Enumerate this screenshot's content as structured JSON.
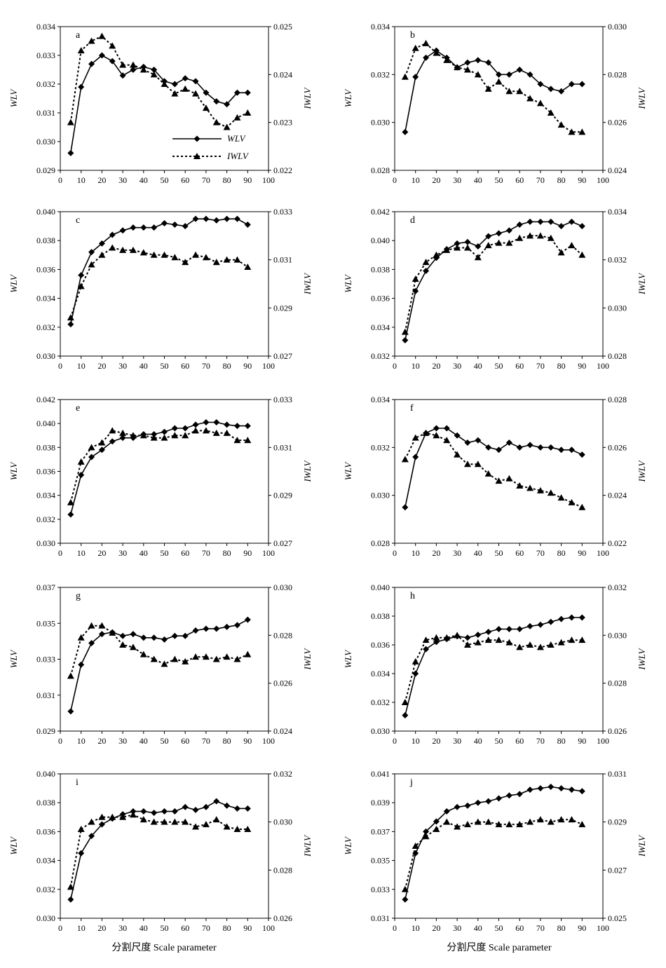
{
  "figure": {
    "xlabels": [
      "分割尺度 Scale parameter",
      "分割尺度 Scale parameter"
    ]
  },
  "legend": {
    "wlv": "WLV",
    "iwlv": "IWLV"
  },
  "chart_data": [
    {
      "type": "line",
      "panel": "a",
      "ylabel_left": "WLV",
      "ylabel_right": "IWLV",
      "xlim": [
        0,
        100
      ],
      "xticks": [
        0,
        10,
        20,
        30,
        40,
        50,
        60,
        70,
        80,
        90,
        100
      ],
      "ylim_left": [
        0.029,
        0.034
      ],
      "yticks_left": [
        "0.029",
        "0.030",
        "0.031",
        "0.032",
        "0.033",
        "0.034"
      ],
      "ylim_right": [
        0.022,
        0.025
      ],
      "yticks_right": [
        "0.022",
        "0.023",
        "0.024",
        "0.025"
      ],
      "x": [
        5,
        10,
        15,
        20,
        25,
        30,
        35,
        40,
        45,
        50,
        55,
        60,
        65,
        70,
        75,
        80,
        85,
        90
      ],
      "series": [
        {
          "name": "WLV",
          "axis": "left",
          "marker": "diamond",
          "line": "solid",
          "values": [
            0.0296,
            0.0319,
            0.0327,
            0.033,
            0.0328,
            0.0323,
            0.0325,
            0.0326,
            0.0325,
            0.0321,
            0.032,
            0.0322,
            0.0321,
            0.0317,
            0.0314,
            0.0313,
            0.0317,
            0.0317
          ]
        },
        {
          "name": "IWLV",
          "axis": "right",
          "marker": "triangle",
          "line": "dotted",
          "values": [
            0.023,
            0.0245,
            0.0247,
            0.0248,
            0.0246,
            0.0242,
            0.0242,
            0.0241,
            0.024,
            0.0238,
            0.0236,
            0.0237,
            0.0236,
            0.0233,
            0.023,
            0.0229,
            0.0231,
            0.0232
          ]
        }
      ],
      "legend": true
    },
    {
      "type": "line",
      "panel": "b",
      "ylabel_left": "WLV",
      "ylabel_right": "IWLV",
      "xlim": [
        0,
        100
      ],
      "xticks": [
        0,
        10,
        20,
        30,
        40,
        50,
        60,
        70,
        80,
        90,
        100
      ],
      "ylim_left": [
        0.028,
        0.034
      ],
      "yticks_left": [
        "0.028",
        "0.030",
        "0.032",
        "0.034"
      ],
      "ylim_right": [
        0.024,
        0.03
      ],
      "yticks_right": [
        "0.024",
        "0.026",
        "0.028",
        "0.030"
      ],
      "x": [
        5,
        10,
        15,
        20,
        25,
        30,
        35,
        40,
        45,
        50,
        55,
        60,
        65,
        70,
        75,
        80,
        85,
        90
      ],
      "series": [
        {
          "name": "WLV",
          "axis": "left",
          "marker": "diamond",
          "line": "solid",
          "values": [
            0.0296,
            0.0319,
            0.0327,
            0.033,
            0.0327,
            0.0323,
            0.0325,
            0.0326,
            0.0325,
            0.032,
            0.032,
            0.0322,
            0.032,
            0.0316,
            0.0314,
            0.0313,
            0.0316,
            0.0316
          ]
        },
        {
          "name": "IWLV",
          "axis": "right",
          "marker": "triangle",
          "line": "dotted",
          "values": [
            0.0279,
            0.0291,
            0.0293,
            0.0289,
            0.0286,
            0.0283,
            0.0282,
            0.028,
            0.0274,
            0.0277,
            0.0273,
            0.0273,
            0.027,
            0.0268,
            0.0264,
            0.0259,
            0.0256,
            0.0256
          ]
        }
      ]
    },
    {
      "type": "line",
      "panel": "c",
      "ylabel_left": "WLV",
      "ylabel_right": "IWLV",
      "xlim": [
        0,
        100
      ],
      "xticks": [
        0,
        10,
        20,
        30,
        40,
        50,
        60,
        70,
        80,
        90,
        100
      ],
      "ylim_left": [
        0.03,
        0.04
      ],
      "yticks_left": [
        "0.030",
        "0.032",
        "0.034",
        "0.036",
        "0.038",
        "0.040"
      ],
      "ylim_right": [
        0.027,
        0.033
      ],
      "yticks_right": [
        "0.027",
        "0.029",
        "0.031",
        "0.033"
      ],
      "x": [
        5,
        10,
        15,
        20,
        25,
        30,
        35,
        40,
        45,
        50,
        55,
        60,
        65,
        70,
        75,
        80,
        85,
        90
      ],
      "series": [
        {
          "name": "WLV",
          "axis": "left",
          "marker": "diamond",
          "line": "solid",
          "values": [
            0.0322,
            0.0356,
            0.0372,
            0.0378,
            0.0384,
            0.0387,
            0.0389,
            0.0389,
            0.0389,
            0.0392,
            0.0391,
            0.039,
            0.0395,
            0.0395,
            0.0394,
            0.0395,
            0.0395,
            0.0391
          ]
        },
        {
          "name": "IWLV",
          "axis": "right",
          "marker": "triangle",
          "line": "dotted",
          "values": [
            0.0286,
            0.0299,
            0.0308,
            0.0312,
            0.0315,
            0.0314,
            0.0314,
            0.0313,
            0.0312,
            0.0312,
            0.0311,
            0.0309,
            0.0312,
            0.0311,
            0.0309,
            0.031,
            0.031,
            0.0307
          ]
        }
      ]
    },
    {
      "type": "line",
      "panel": "d",
      "ylabel_left": "WLV",
      "ylabel_right": "IWLV",
      "xlim": [
        0,
        100
      ],
      "xticks": [
        0,
        10,
        20,
        30,
        40,
        50,
        60,
        70,
        80,
        90,
        100
      ],
      "ylim_left": [
        0.032,
        0.042
      ],
      "yticks_left": [
        "0.032",
        "0.034",
        "0.036",
        "0.038",
        "0.040",
        "0.042"
      ],
      "ylim_right": [
        0.028,
        0.034
      ],
      "yticks_right": [
        "0.028",
        "0.030",
        "0.032",
        "0.034"
      ],
      "x": [
        5,
        10,
        15,
        20,
        25,
        30,
        35,
        40,
        45,
        50,
        55,
        60,
        65,
        70,
        75,
        80,
        85,
        90
      ],
      "series": [
        {
          "name": "WLV",
          "axis": "left",
          "marker": "diamond",
          "line": "solid",
          "values": [
            0.0331,
            0.0365,
            0.0379,
            0.0388,
            0.0394,
            0.0398,
            0.0399,
            0.0396,
            0.0403,
            0.0405,
            0.0407,
            0.0411,
            0.0413,
            0.0413,
            0.0413,
            0.041,
            0.0413,
            0.041
          ]
        },
        {
          "name": "IWLV",
          "axis": "right",
          "marker": "triangle",
          "line": "dotted",
          "values": [
            0.029,
            0.0312,
            0.0319,
            0.0322,
            0.0324,
            0.0325,
            0.0325,
            0.0321,
            0.0326,
            0.0327,
            0.0327,
            0.0329,
            0.033,
            0.033,
            0.0329,
            0.0323,
            0.0326,
            0.0322
          ]
        }
      ]
    },
    {
      "type": "line",
      "panel": "e",
      "ylabel_left": "WLV",
      "ylabel_right": "IWLV",
      "xlim": [
        0,
        100
      ],
      "xticks": [
        0,
        10,
        20,
        30,
        40,
        50,
        60,
        70,
        80,
        90,
        100
      ],
      "ylim_left": [
        0.03,
        0.042
      ],
      "yticks_left": [
        "0.030",
        "0.032",
        "0.034",
        "0.036",
        "0.038",
        "0.040",
        "0.042"
      ],
      "ylim_right": [
        0.027,
        0.033
      ],
      "yticks_right": [
        "0.027",
        "0.029",
        "0.031",
        "0.033"
      ],
      "x": [
        5,
        10,
        15,
        20,
        25,
        30,
        35,
        40,
        45,
        50,
        55,
        60,
        65,
        70,
        75,
        80,
        85,
        90
      ],
      "series": [
        {
          "name": "WLV",
          "axis": "left",
          "marker": "diamond",
          "line": "solid",
          "values": [
            0.0324,
            0.0357,
            0.0372,
            0.0378,
            0.0385,
            0.0388,
            0.0388,
            0.0391,
            0.0391,
            0.0393,
            0.0396,
            0.0396,
            0.0399,
            0.0401,
            0.0401,
            0.0399,
            0.0398,
            0.0398
          ]
        },
        {
          "name": "IWLV",
          "axis": "right",
          "marker": "triangle",
          "line": "dotted",
          "values": [
            0.0287,
            0.0304,
            0.031,
            0.0312,
            0.0317,
            0.0316,
            0.0315,
            0.0315,
            0.0314,
            0.0314,
            0.0315,
            0.0315,
            0.0317,
            0.0317,
            0.0316,
            0.0316,
            0.0313,
            0.0313
          ]
        }
      ]
    },
    {
      "type": "line",
      "panel": "f",
      "ylabel_left": "WLV",
      "ylabel_right": "IWLV",
      "xlim": [
        0,
        100
      ],
      "xticks": [
        0,
        10,
        20,
        30,
        40,
        50,
        60,
        70,
        80,
        90,
        100
      ],
      "ylim_left": [
        0.028,
        0.034
      ],
      "yticks_left": [
        "0.028",
        "0.030",
        "0.032",
        "0.034"
      ],
      "ylim_right": [
        0.022,
        0.028
      ],
      "yticks_right": [
        "0.022",
        "0.024",
        "0.026",
        "0.028"
      ],
      "x": [
        5,
        10,
        15,
        20,
        25,
        30,
        35,
        40,
        45,
        50,
        55,
        60,
        65,
        70,
        75,
        80,
        85,
        90
      ],
      "series": [
        {
          "name": "WLV",
          "axis": "left",
          "marker": "diamond",
          "line": "solid",
          "values": [
            0.0295,
            0.0316,
            0.0326,
            0.0328,
            0.0328,
            0.0325,
            0.0322,
            0.0323,
            0.032,
            0.0319,
            0.0322,
            0.032,
            0.0321,
            0.032,
            0.032,
            0.0319,
            0.0319,
            0.0317
          ]
        },
        {
          "name": "IWLV",
          "axis": "right",
          "marker": "triangle",
          "line": "dotted",
          "values": [
            0.0255,
            0.0264,
            0.0266,
            0.0265,
            0.0263,
            0.0257,
            0.0253,
            0.0253,
            0.0249,
            0.0246,
            0.0247,
            0.0244,
            0.0243,
            0.0242,
            0.0241,
            0.0239,
            0.0237,
            0.0235
          ]
        }
      ]
    },
    {
      "type": "line",
      "panel": "g",
      "ylabel_left": "WLV",
      "ylabel_right": "IWLV",
      "xlim": [
        0,
        100
      ],
      "xticks": [
        0,
        10,
        20,
        30,
        40,
        50,
        60,
        70,
        80,
        90,
        100
      ],
      "ylim_left": [
        0.029,
        0.037
      ],
      "yticks_left": [
        "0.029",
        "0.031",
        "0.033",
        "0.035",
        "0.037"
      ],
      "ylim_right": [
        0.024,
        0.03
      ],
      "yticks_right": [
        "0.024",
        "0.026",
        "0.028",
        "0.030"
      ],
      "x": [
        5,
        10,
        15,
        20,
        25,
        30,
        35,
        40,
        45,
        50,
        55,
        60,
        65,
        70,
        75,
        80,
        85,
        90
      ],
      "series": [
        {
          "name": "WLV",
          "axis": "left",
          "marker": "diamond",
          "line": "solid",
          "values": [
            0.0301,
            0.0327,
            0.0339,
            0.0344,
            0.0345,
            0.0343,
            0.0344,
            0.0342,
            0.0342,
            0.0341,
            0.0343,
            0.0343,
            0.0346,
            0.0347,
            0.0347,
            0.0348,
            0.0349,
            0.0352
          ]
        },
        {
          "name": "IWLV",
          "axis": "right",
          "marker": "triangle",
          "line": "dotted",
          "values": [
            0.0263,
            0.0279,
            0.0284,
            0.0284,
            0.0281,
            0.0276,
            0.0275,
            0.0272,
            0.027,
            0.0268,
            0.027,
            0.0269,
            0.0271,
            0.0271,
            0.027,
            0.0271,
            0.027,
            0.0272
          ]
        }
      ]
    },
    {
      "type": "line",
      "panel": "h",
      "ylabel_left": "WLV",
      "ylabel_right": "IWLV",
      "xlim": [
        0,
        100
      ],
      "xticks": [
        0,
        10,
        20,
        30,
        40,
        50,
        60,
        70,
        80,
        90,
        100
      ],
      "ylim_left": [
        0.03,
        0.04
      ],
      "yticks_left": [
        "0.030",
        "0.032",
        "0.034",
        "0.036",
        "0.038",
        "0.040"
      ],
      "ylim_right": [
        0.026,
        0.032
      ],
      "yticks_right": [
        "0.026",
        "0.028",
        "0.030",
        "0.032"
      ],
      "x": [
        5,
        10,
        15,
        20,
        25,
        30,
        35,
        40,
        45,
        50,
        55,
        60,
        65,
        70,
        75,
        80,
        85,
        90
      ],
      "series": [
        {
          "name": "WLV",
          "axis": "left",
          "marker": "diamond",
          "line": "solid",
          "values": [
            0.0311,
            0.034,
            0.0357,
            0.0362,
            0.0364,
            0.0366,
            0.0365,
            0.0367,
            0.0369,
            0.0371,
            0.0371,
            0.0371,
            0.0373,
            0.0374,
            0.0376,
            0.0378,
            0.0379,
            0.0379
          ]
        },
        {
          "name": "IWLV",
          "axis": "right",
          "marker": "triangle",
          "line": "dotted",
          "values": [
            0.0272,
            0.0289,
            0.0298,
            0.0299,
            0.0299,
            0.03,
            0.0296,
            0.0297,
            0.0298,
            0.0298,
            0.0297,
            0.0295,
            0.0296,
            0.0295,
            0.0296,
            0.0297,
            0.0298,
            0.0298
          ]
        }
      ]
    },
    {
      "type": "line",
      "panel": "i",
      "ylabel_left": "WLV",
      "ylabel_right": "IWLV",
      "xlim": [
        0,
        100
      ],
      "xticks": [
        0,
        10,
        20,
        30,
        40,
        50,
        60,
        70,
        80,
        90,
        100
      ],
      "ylim_left": [
        0.03,
        0.04
      ],
      "yticks_left": [
        "0.030",
        "0.032",
        "0.034",
        "0.036",
        "0.038",
        "0.040"
      ],
      "ylim_right": [
        0.026,
        0.032
      ],
      "yticks_right": [
        "0.026",
        "0.028",
        "0.030",
        "0.032"
      ],
      "x": [
        5,
        10,
        15,
        20,
        25,
        30,
        35,
        40,
        45,
        50,
        55,
        60,
        65,
        70,
        75,
        80,
        85,
        90
      ],
      "series": [
        {
          "name": "WLV",
          "axis": "left",
          "marker": "diamond",
          "line": "solid",
          "values": [
            0.0313,
            0.0345,
            0.0357,
            0.0365,
            0.0369,
            0.0372,
            0.0374,
            0.0374,
            0.0373,
            0.0374,
            0.0374,
            0.0377,
            0.0375,
            0.0377,
            0.0381,
            0.0378,
            0.0376,
            0.0376
          ]
        },
        {
          "name": "IWLV",
          "axis": "right",
          "marker": "triangle",
          "line": "dotted",
          "values": [
            0.0273,
            0.0297,
            0.03,
            0.0302,
            0.0302,
            0.0302,
            0.0303,
            0.0301,
            0.03,
            0.03,
            0.03,
            0.03,
            0.0298,
            0.0299,
            0.0301,
            0.0298,
            0.0297,
            0.0297
          ]
        }
      ]
    },
    {
      "type": "line",
      "panel": "j",
      "ylabel_left": "WLV",
      "ylabel_right": "IWLV",
      "xlim": [
        0,
        100
      ],
      "xticks": [
        0,
        10,
        20,
        30,
        40,
        50,
        60,
        70,
        80,
        90,
        100
      ],
      "ylim_left": [
        0.031,
        0.041
      ],
      "yticks_left": [
        "0.031",
        "0.033",
        "0.035",
        "0.037",
        "0.039",
        "0.041"
      ],
      "ylim_right": [
        0.025,
        0.031
      ],
      "yticks_right": [
        "0.025",
        "0.027",
        "0.029",
        "0.031"
      ],
      "x": [
        5,
        10,
        15,
        20,
        25,
        30,
        35,
        40,
        45,
        50,
        55,
        60,
        65,
        70,
        75,
        80,
        85,
        90
      ],
      "series": [
        {
          "name": "WLV",
          "axis": "left",
          "marker": "diamond",
          "line": "solid",
          "values": [
            0.0323,
            0.0355,
            0.037,
            0.0377,
            0.0384,
            0.0387,
            0.0388,
            0.039,
            0.0391,
            0.0393,
            0.0395,
            0.0396,
            0.0399,
            0.04,
            0.0401,
            0.04,
            0.0399,
            0.0398
          ]
        },
        {
          "name": "IWLV",
          "axis": "right",
          "marker": "triangle",
          "line": "dotted",
          "values": [
            0.0262,
            0.028,
            0.0284,
            0.0287,
            0.029,
            0.0288,
            0.0289,
            0.029,
            0.029,
            0.0289,
            0.0289,
            0.0289,
            0.029,
            0.0291,
            0.029,
            0.0291,
            0.0291,
            0.0289
          ]
        }
      ]
    }
  ]
}
